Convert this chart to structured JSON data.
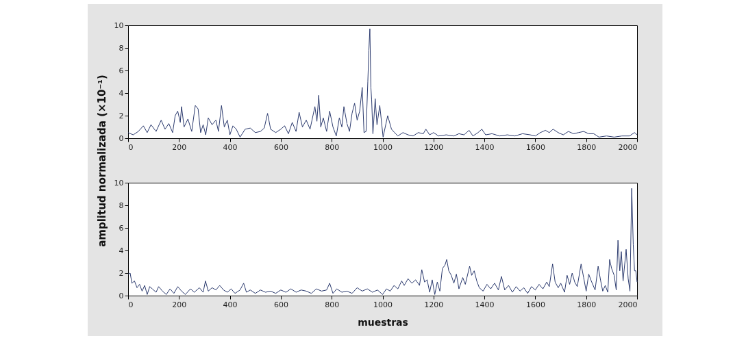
{
  "chart_data": [
    {
      "type": "line",
      "ylabel": "amplitud normalizada (×10⁻¹)",
      "color": "#2b3a6e",
      "xlim": [
        0,
        2000
      ],
      "ylim": [
        0,
        10
      ],
      "xticks": [
        0,
        200,
        400,
        600,
        800,
        1000,
        1200,
        1400,
        1600,
        1800,
        2000
      ],
      "yticks": [
        0,
        2,
        4,
        6,
        8,
        10
      ],
      "x": [
        0,
        20,
        40,
        60,
        75,
        90,
        110,
        130,
        145,
        160,
        175,
        185,
        195,
        205,
        210,
        220,
        235,
        250,
        264,
        275,
        285,
        295,
        305,
        315,
        330,
        345,
        355,
        367,
        378,
        390,
        400,
        412,
        425,
        440,
        460,
        480,
        500,
        520,
        535,
        548,
        560,
        580,
        600,
        615,
        630,
        645,
        660,
        672,
        685,
        700,
        715,
        734,
        742,
        749,
        757,
        767,
        780,
        792,
        805,
        818,
        830,
        840,
        848,
        860,
        870,
        880,
        890,
        900,
        910,
        920,
        927,
        935,
        942,
        946,
        950,
        954,
        957,
        962,
        971,
        978,
        989,
        1002,
        1020,
        1035,
        1047,
        1060,
        1080,
        1100,
        1120,
        1140,
        1160,
        1170,
        1185,
        1200,
        1220,
        1250,
        1280,
        1300,
        1320,
        1340,
        1355,
        1375,
        1390,
        1405,
        1430,
        1460,
        1490,
        1520,
        1550,
        1580,
        1600,
        1620,
        1640,
        1655,
        1670,
        1690,
        1710,
        1730,
        1750,
        1770,
        1790,
        1810,
        1830,
        1850,
        1880,
        1910,
        1940,
        1970,
        1990,
        2000
      ],
      "values": [
        0.5,
        0.3,
        0.6,
        1.1,
        0.5,
        1.2,
        0.6,
        1.6,
        0.8,
        1.3,
        0.5,
        2.0,
        2.4,
        1.4,
        2.8,
        1.0,
        1.7,
        0.6,
        2.9,
        2.6,
        0.5,
        1.2,
        0.3,
        1.8,
        1.2,
        1.6,
        0.6,
        2.9,
        1.0,
        1.6,
        0.3,
        1.1,
        0.8,
        0.1,
        0.8,
        0.9,
        0.5,
        0.6,
        0.9,
        2.2,
        0.8,
        0.5,
        0.8,
        1.1,
        0.4,
        1.4,
        0.6,
        2.3,
        1.0,
        1.6,
        0.8,
        2.8,
        1.5,
        3.8,
        1.0,
        1.8,
        0.6,
        2.4,
        1.0,
        0.2,
        1.8,
        1.0,
        2.8,
        1.3,
        0.6,
        2.2,
        3.1,
        1.6,
        2.4,
        4.5,
        0.5,
        0.6,
        5.0,
        7.8,
        9.7,
        4.5,
        3.4,
        0.4,
        3.5,
        1.2,
        2.9,
        0.1,
        2.0,
        0.8,
        0.5,
        0.2,
        0.5,
        0.3,
        0.2,
        0.5,
        0.4,
        0.8,
        0.3,
        0.5,
        0.2,
        0.3,
        0.2,
        0.4,
        0.3,
        0.7,
        0.2,
        0.5,
        0.8,
        0.3,
        0.4,
        0.2,
        0.3,
        0.2,
        0.4,
        0.3,
        0.2,
        0.5,
        0.7,
        0.5,
        0.8,
        0.5,
        0.3,
        0.6,
        0.4,
        0.5,
        0.6,
        0.4,
        0.4,
        0.1,
        0.2,
        0.1,
        0.2,
        0.2,
        0.5,
        0.3
      ]
    },
    {
      "type": "line",
      "xlabel": "muestras",
      "color": "#2b3a6e",
      "xlim": [
        0,
        2000
      ],
      "ylim": [
        0,
        10
      ],
      "xticks": [
        0,
        200,
        400,
        600,
        800,
        1000,
        1200,
        1400,
        1600,
        1800,
        2000
      ],
      "yticks": [
        0,
        2,
        4,
        6,
        8,
        10
      ],
      "x": [
        0,
        8,
        15,
        25,
        35,
        45,
        55,
        65,
        75,
        85,
        95,
        110,
        120,
        135,
        150,
        165,
        180,
        195,
        210,
        225,
        245,
        260,
        280,
        295,
        304,
        315,
        330,
        345,
        360,
        375,
        390,
        405,
        420,
        440,
        454,
        465,
        480,
        500,
        520,
        540,
        560,
        580,
        600,
        620,
        640,
        660,
        680,
        700,
        720,
        740,
        760,
        780,
        792,
        805,
        820,
        840,
        860,
        880,
        900,
        920,
        940,
        960,
        980,
        1000,
        1015,
        1030,
        1045,
        1060,
        1075,
        1085,
        1100,
        1115,
        1130,
        1145,
        1154,
        1165,
        1175,
        1185,
        1195,
        1205,
        1215,
        1225,
        1235,
        1245,
        1252,
        1260,
        1270,
        1280,
        1290,
        1300,
        1315,
        1325,
        1342,
        1350,
        1360,
        1370,
        1380,
        1395,
        1410,
        1425,
        1440,
        1455,
        1467,
        1480,
        1495,
        1510,
        1525,
        1540,
        1555,
        1570,
        1585,
        1600,
        1615,
        1630,
        1645,
        1655,
        1668,
        1678,
        1690,
        1700,
        1715,
        1725,
        1735,
        1745,
        1755,
        1765,
        1780,
        1790,
        1800,
        1810,
        1820,
        1835,
        1847,
        1857,
        1865,
        1875,
        1885,
        1892,
        1900,
        1910,
        1918,
        1925,
        1932,
        1938,
        1945,
        1957,
        1965,
        1972,
        1979,
        1985,
        1990,
        1995,
        2000
      ],
      "values": [
        1.9,
        2.0,
        1.1,
        1.3,
        0.7,
        1.0,
        0.4,
        0.9,
        0.1,
        0.8,
        0.6,
        0.3,
        0.8,
        0.4,
        0.1,
        0.6,
        0.2,
        0.8,
        0.4,
        0.1,
        0.6,
        0.3,
        0.7,
        0.3,
        1.3,
        0.4,
        0.7,
        0.5,
        0.9,
        0.5,
        0.3,
        0.6,
        0.2,
        0.5,
        1.1,
        0.3,
        0.5,
        0.2,
        0.5,
        0.3,
        0.4,
        0.2,
        0.5,
        0.3,
        0.6,
        0.3,
        0.5,
        0.4,
        0.2,
        0.6,
        0.4,
        0.5,
        1.1,
        0.2,
        0.6,
        0.3,
        0.4,
        0.2,
        0.7,
        0.4,
        0.6,
        0.3,
        0.5,
        0.1,
        0.6,
        0.4,
        0.9,
        0.6,
        1.3,
        0.9,
        1.5,
        1.1,
        1.4,
        0.9,
        2.3,
        1.2,
        1.4,
        0.3,
        1.4,
        0.1,
        1.2,
        0.4,
        2.4,
        2.7,
        3.2,
        2.2,
        1.8,
        1.1,
        1.9,
        0.6,
        1.6,
        1.0,
        2.6,
        1.8,
        2.2,
        1.3,
        0.7,
        0.4,
        1.0,
        0.6,
        1.1,
        0.5,
        1.7,
        0.5,
        0.9,
        0.3,
        0.8,
        0.4,
        0.7,
        0.2,
        0.8,
        0.5,
        1.0,
        0.6,
        1.2,
        0.8,
        2.8,
        1.2,
        0.7,
        1.1,
        0.3,
        1.8,
        1.0,
        2.0,
        1.2,
        0.8,
        2.8,
        1.6,
        0.4,
        1.9,
        1.3,
        0.5,
        2.6,
        1.3,
        0.4,
        0.9,
        0.3,
        3.2,
        2.4,
        1.8,
        0.5,
        4.9,
        2.2,
        3.9,
        1.3,
        4.1,
        1.5,
        0.4,
        9.5,
        4.5,
        2.2,
        2.2,
        1.2
      ]
    }
  ]
}
